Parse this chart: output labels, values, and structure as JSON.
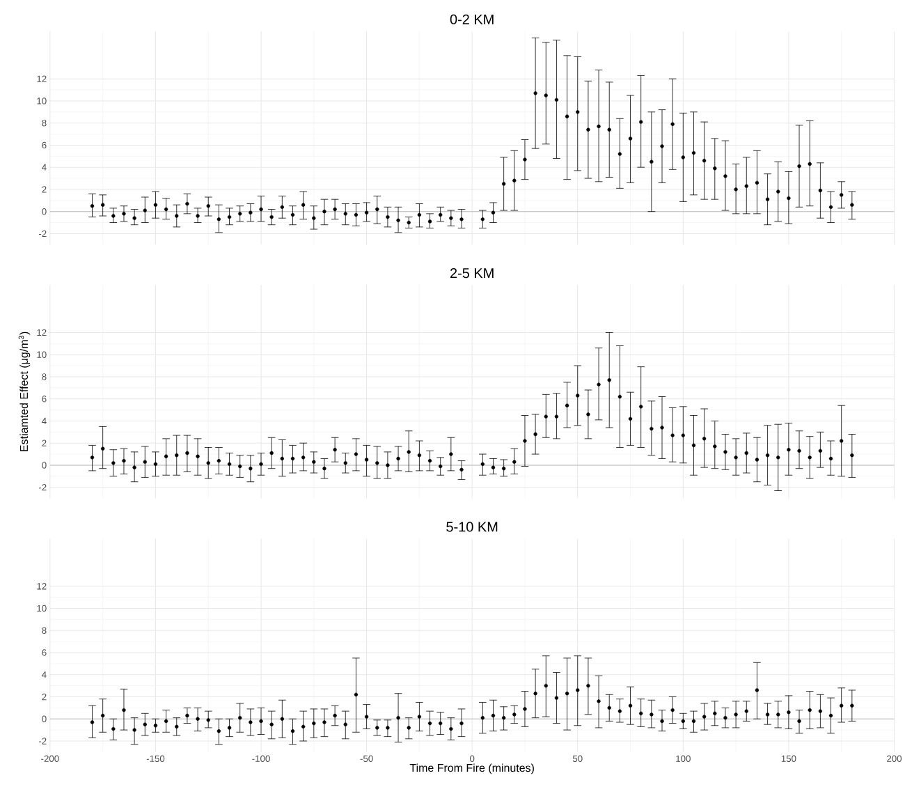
{
  "chart_data": [
    {
      "type": "scatter",
      "title": "0-2 KM",
      "color": "#000000",
      "grid": true,
      "tick_labels": "y",
      "xlim": [
        -200,
        200
      ],
      "xticks": [
        -200,
        -150,
        -100,
        -50,
        0,
        50,
        100,
        150,
        200
      ],
      "ylim": [
        -3,
        16.3
      ],
      "yticks": [
        -2,
        0,
        2,
        4,
        6,
        8,
        10,
        12
      ],
      "ref_lines": [
        {
          "axis": "y",
          "value": 0,
          "color": "#bdbdbd"
        }
      ],
      "x": [
        -180,
        -175,
        -170,
        -165,
        -160,
        -155,
        -150,
        -145,
        -140,
        -135,
        -130,
        -125,
        -120,
        -115,
        -110,
        -105,
        -100,
        -95,
        -90,
        -85,
        -80,
        -75,
        -70,
        -65,
        -60,
        -55,
        -50,
        -45,
        -40,
        -35,
        -30,
        -25,
        -20,
        -15,
        -10,
        -5,
        5,
        10,
        15,
        20,
        25,
        30,
        35,
        40,
        45,
        50,
        55,
        60,
        65,
        70,
        75,
        80,
        85,
        90,
        95,
        100,
        105,
        110,
        115,
        120,
        125,
        130,
        135,
        140,
        145,
        150,
        155,
        160,
        165,
        170,
        175,
        180
      ],
      "values": [
        0.5,
        0.6,
        -0.4,
        -0.2,
        -0.6,
        0.1,
        0.6,
        0.2,
        -0.4,
        0.7,
        -0.4,
        0.5,
        -0.7,
        -0.5,
        -0.2,
        -0.1,
        0.2,
        -0.5,
        0.4,
        -0.3,
        0.6,
        -0.6,
        0.0,
        0.2,
        -0.2,
        -0.3,
        -0.1,
        0.2,
        -0.5,
        -0.8,
        -1.0,
        -0.3,
        -0.9,
        -0.3,
        -0.6,
        -0.7,
        -0.7,
        -0.1,
        2.5,
        2.8,
        4.7,
        10.7,
        10.5,
        10.1,
        8.6,
        9.0,
        7.4,
        7.7,
        7.4,
        5.2,
        6.6,
        8.1,
        4.5,
        5.9,
        7.9,
        4.9,
        5.3,
        4.6,
        3.9,
        3.2,
        2.0,
        2.3,
        2.6,
        1.1,
        1.8,
        1.2,
        4.1,
        4.3,
        1.9,
        0.4,
        1.5,
        0.6
      ],
      "errors": [
        [
          -0.5,
          1.6
        ],
        [
          -0.4,
          1.5
        ],
        [
          -1.0,
          0.3
        ],
        [
          -0.9,
          0.5
        ],
        [
          -1.2,
          0.2
        ],
        [
          -1.0,
          1.3
        ],
        [
          -0.6,
          1.8
        ],
        [
          -0.7,
          1.2
        ],
        [
          -1.4,
          0.6
        ],
        [
          -0.2,
          1.6
        ],
        [
          -1.0,
          0.3
        ],
        [
          -0.4,
          1.3
        ],
        [
          -1.9,
          0.6
        ],
        [
          -1.2,
          0.3
        ],
        [
          -0.9,
          0.5
        ],
        [
          -0.9,
          0.7
        ],
        [
          -0.9,
          1.4
        ],
        [
          -1.2,
          0.2
        ],
        [
          -0.6,
          1.4
        ],
        [
          -1.2,
          0.5
        ],
        [
          -0.7,
          1.8
        ],
        [
          -1.6,
          0.5
        ],
        [
          -1.2,
          1.1
        ],
        [
          -0.7,
          1.1
        ],
        [
          -1.2,
          0.7
        ],
        [
          -1.3,
          0.7
        ],
        [
          -0.9,
          0.8
        ],
        [
          -1.1,
          1.4
        ],
        [
          -1.4,
          0.4
        ],
        [
          -1.9,
          0.4
        ],
        [
          -1.5,
          -0.5
        ],
        [
          -1.4,
          0.7
        ],
        [
          -1.5,
          -0.2
        ],
        [
          -0.9,
          0.4
        ],
        [
          -1.3,
          0.1
        ],
        [
          -1.5,
          0.2
        ],
        [
          -1.5,
          0.1
        ],
        [
          -1.0,
          0.8
        ],
        [
          0.1,
          4.9
        ],
        [
          0.1,
          5.5
        ],
        [
          2.9,
          6.5
        ],
        [
          5.7,
          15.7
        ],
        [
          6.1,
          15.3
        ],
        [
          4.8,
          15.5
        ],
        [
          2.9,
          14.1
        ],
        [
          3.7,
          14.0
        ],
        [
          3.0,
          11.8
        ],
        [
          2.7,
          12.8
        ],
        [
          3.1,
          11.7
        ],
        [
          2.1,
          8.4
        ],
        [
          2.6,
          10.5
        ],
        [
          4.0,
          12.3
        ],
        [
          0.0,
          9.0
        ],
        [
          2.6,
          9.2
        ],
        [
          3.8,
          12.0
        ],
        [
          0.9,
          8.9
        ],
        [
          1.5,
          9.0
        ],
        [
          1.1,
          8.1
        ],
        [
          1.1,
          6.6
        ],
        [
          0.1,
          6.4
        ],
        [
          -0.2,
          4.3
        ],
        [
          -0.2,
          4.9
        ],
        [
          -0.2,
          5.5
        ],
        [
          -1.2,
          3.4
        ],
        [
          -0.9,
          4.5
        ],
        [
          -1.1,
          3.6
        ],
        [
          0.4,
          7.8
        ],
        [
          0.5,
          8.2
        ],
        [
          -0.6,
          4.4
        ],
        [
          -1.0,
          1.8
        ],
        [
          0.3,
          2.7
        ],
        [
          -0.7,
          1.8
        ]
      ]
    },
    {
      "type": "scatter",
      "title": "2-5 KM",
      "ylabel": "Estiamted Effect (μg/m$^{3}$)",
      "color": "#000000",
      "grid": true,
      "tick_labels": "y",
      "xlim": [
        -200,
        200
      ],
      "xticks": [
        -200,
        -150,
        -100,
        -50,
        0,
        50,
        100,
        150,
        200
      ],
      "ylim": [
        -3,
        16.3
      ],
      "yticks": [
        -2,
        0,
        2,
        4,
        6,
        8,
        10,
        12
      ],
      "ref_lines": [
        {
          "axis": "y",
          "value": 0,
          "color": "#bdbdbd"
        }
      ],
      "x": [
        -180,
        -175,
        -170,
        -165,
        -160,
        -155,
        -150,
        -145,
        -140,
        -135,
        -130,
        -125,
        -120,
        -115,
        -110,
        -105,
        -100,
        -95,
        -90,
        -85,
        -80,
        -75,
        -70,
        -65,
        -60,
        -55,
        -50,
        -45,
        -40,
        -35,
        -30,
        -25,
        -20,
        -15,
        -10,
        -5,
        5,
        10,
        15,
        20,
        25,
        30,
        35,
        40,
        45,
        50,
        55,
        60,
        65,
        70,
        75,
        80,
        85,
        90,
        95,
        100,
        105,
        110,
        115,
        120,
        125,
        130,
        135,
        140,
        145,
        150,
        155,
        160,
        165,
        170,
        175,
        180
      ],
      "values": [
        0.7,
        1.5,
        0.2,
        0.4,
        -0.2,
        0.3,
        0.1,
        0.8,
        0.9,
        1.1,
        0.8,
        0.2,
        0.4,
        0.1,
        -0.1,
        -0.3,
        0.1,
        1.1,
        0.6,
        0.6,
        0.7,
        0.3,
        -0.3,
        1.4,
        0.2,
        1.0,
        0.5,
        0.2,
        0.0,
        0.6,
        1.2,
        0.9,
        0.4,
        -0.1,
        1.0,
        -0.4,
        0.1,
        -0.2,
        -0.3,
        0.3,
        2.2,
        2.8,
        4.4,
        4.4,
        5.4,
        6.3,
        4.6,
        7.3,
        7.7,
        6.2,
        4.2,
        5.3,
        3.3,
        3.4,
        2.7,
        2.7,
        1.8,
        2.4,
        1.7,
        1.2,
        0.7,
        1.1,
        0.5,
        0.9,
        0.7,
        1.4,
        1.3,
        0.7,
        1.3,
        0.6,
        2.2,
        0.9
      ],
      "errors": [
        [
          -0.5,
          1.8
        ],
        [
          -0.3,
          3.5
        ],
        [
          -1.0,
          1.4
        ],
        [
          -0.8,
          1.5
        ],
        [
          -1.5,
          1.2
        ],
        [
          -1.1,
          1.7
        ],
        [
          -1.0,
          1.2
        ],
        [
          -0.9,
          2.4
        ],
        [
          -0.9,
          2.7
        ],
        [
          -0.6,
          2.7
        ],
        [
          -0.9,
          2.4
        ],
        [
          -1.2,
          1.6
        ],
        [
          -0.8,
          1.6
        ],
        [
          -0.9,
          1.1
        ],
        [
          -1.1,
          0.9
        ],
        [
          -1.5,
          0.9
        ],
        [
          -0.9,
          1.1
        ],
        [
          -0.3,
          2.5
        ],
        [
          -1.0,
          2.3
        ],
        [
          -0.7,
          1.8
        ],
        [
          -0.5,
          2.0
        ],
        [
          -0.7,
          1.2
        ],
        [
          -1.2,
          0.6
        ],
        [
          0.3,
          2.5
        ],
        [
          -0.7,
          1.1
        ],
        [
          -0.5,
          2.4
        ],
        [
          -1.0,
          1.8
        ],
        [
          -1.2,
          1.7
        ],
        [
          -1.2,
          1.2
        ],
        [
          -0.5,
          1.7
        ],
        [
          -0.6,
          3.1
        ],
        [
          -0.5,
          2.2
        ],
        [
          -0.5,
          1.3
        ],
        [
          -0.9,
          0.7
        ],
        [
          -0.5,
          2.5
        ],
        [
          -1.3,
          0.4
        ],
        [
          -0.9,
          1.0
        ],
        [
          -0.8,
          0.6
        ],
        [
          -1.0,
          0.5
        ],
        [
          -0.8,
          1.5
        ],
        [
          -0.1,
          4.5
        ],
        [
          1.0,
          4.6
        ],
        [
          2.5,
          6.4
        ],
        [
          2.4,
          6.5
        ],
        [
          3.4,
          7.5
        ],
        [
          3.6,
          9.0
        ],
        [
          2.4,
          6.8
        ],
        [
          4.1,
          10.6
        ],
        [
          3.4,
          12.0
        ],
        [
          1.6,
          10.8
        ],
        [
          1.8,
          6.6
        ],
        [
          1.6,
          8.9
        ],
        [
          0.9,
          5.8
        ],
        [
          0.6,
          6.2
        ],
        [
          0.3,
          5.2
        ],
        [
          0.2,
          5.3
        ],
        [
          -0.9,
          4.5
        ],
        [
          -0.2,
          5.1
        ],
        [
          -0.3,
          4.0
        ],
        [
          -0.4,
          2.8
        ],
        [
          -0.9,
          2.4
        ],
        [
          -0.7,
          2.9
        ],
        [
          -1.5,
          2.5
        ],
        [
          -1.8,
          3.6
        ],
        [
          -2.3,
          3.7
        ],
        [
          -0.9,
          3.8
        ],
        [
          -0.3,
          3.1
        ],
        [
          -1.2,
          2.6
        ],
        [
          -0.2,
          3.0
        ],
        [
          -0.9,
          2.2
        ],
        [
          -1.0,
          5.4
        ],
        [
          -1.1,
          2.8
        ]
      ]
    },
    {
      "type": "scatter",
      "title": "5-10 KM",
      "xlabel": "Time From Fire (minutes)",
      "color": "#000000",
      "grid": true,
      "xlim": [
        -200,
        200
      ],
      "xticks": [
        -200,
        -150,
        -100,
        -50,
        0,
        50,
        100,
        150,
        200
      ],
      "ylim": [
        -3,
        16.3
      ],
      "yticks": [
        -2,
        0,
        2,
        4,
        6,
        8,
        10,
        12
      ],
      "ref_lines": [
        {
          "axis": "y",
          "value": 0,
          "color": "#bdbdbd"
        }
      ],
      "x": [
        -180,
        -175,
        -170,
        -165,
        -160,
        -155,
        -150,
        -145,
        -140,
        -135,
        -130,
        -125,
        -120,
        -115,
        -110,
        -105,
        -100,
        -95,
        -90,
        -85,
        -80,
        -75,
        -70,
        -65,
        -60,
        -55,
        -50,
        -45,
        -40,
        -35,
        -30,
        -25,
        -20,
        -15,
        -10,
        -5,
        5,
        10,
        15,
        20,
        25,
        30,
        35,
        40,
        45,
        50,
        55,
        60,
        65,
        70,
        75,
        80,
        85,
        90,
        95,
        100,
        105,
        110,
        115,
        120,
        125,
        130,
        135,
        140,
        145,
        150,
        155,
        160,
        165,
        170,
        175,
        180
      ],
      "values": [
        -0.3,
        0.3,
        -0.9,
        0.8,
        -1.0,
        -0.5,
        -0.6,
        -0.2,
        -0.7,
        0.3,
        0.0,
        -0.1,
        -1.1,
        -0.8,
        0.1,
        -0.3,
        -0.2,
        -0.5,
        0.0,
        -1.1,
        -0.7,
        -0.4,
        -0.3,
        0.3,
        -0.5,
        2.2,
        0.2,
        -0.8,
        -0.8,
        0.1,
        -0.8,
        0.2,
        -0.4,
        -0.4,
        -0.9,
        -0.4,
        0.1,
        0.3,
        0.1,
        0.4,
        0.9,
        2.3,
        3.0,
        1.9,
        2.3,
        2.6,
        3.0,
        1.6,
        1.0,
        0.7,
        1.2,
        0.5,
        0.4,
        -0.2,
        0.8,
        -0.2,
        -0.2,
        0.2,
        0.5,
        0.1,
        0.4,
        0.7,
        2.6,
        0.4,
        0.4,
        0.6,
        -0.2,
        0.8,
        0.7,
        0.3,
        1.2,
        1.2
      ],
      "errors": [
        [
          -1.7,
          1.2
        ],
        [
          -1.2,
          1.8
        ],
        [
          -1.9,
          0.0
        ],
        [
          -1.0,
          2.7
        ],
        [
          -2.3,
          0.1
        ],
        [
          -1.5,
          0.5
        ],
        [
          -1.2,
          0.0
        ],
        [
          -1.2,
          0.8
        ],
        [
          -1.5,
          0.1
        ],
        [
          -0.4,
          1.0
        ],
        [
          -1.1,
          1.0
        ],
        [
          -0.8,
          0.7
        ],
        [
          -2.3,
          0.0
        ],
        [
          -1.6,
          0.0
        ],
        [
          -1.2,
          1.4
        ],
        [
          -1.5,
          0.9
        ],
        [
          -1.4,
          1.0
        ],
        [
          -1.8,
          0.7
        ],
        [
          -1.7,
          1.7
        ],
        [
          -2.3,
          0.0
        ],
        [
          -2.0,
          0.7
        ],
        [
          -1.7,
          0.9
        ],
        [
          -1.6,
          0.9
        ],
        [
          -0.6,
          1.2
        ],
        [
          -1.8,
          0.7
        ],
        [
          -1.2,
          5.5
        ],
        [
          -0.9,
          1.3
        ],
        [
          -1.5,
          -0.1
        ],
        [
          -1.6,
          -0.1
        ],
        [
          -2.1,
          2.3
        ],
        [
          -1.8,
          0.1
        ],
        [
          -1.1,
          1.5
        ],
        [
          -1.5,
          0.7
        ],
        [
          -1.4,
          0.6
        ],
        [
          -1.9,
          0.1
        ],
        [
          -1.6,
          0.9
        ],
        [
          -1.3,
          1.5
        ],
        [
          -1.1,
          1.7
        ],
        [
          -1.0,
          1.1
        ],
        [
          -0.4,
          1.2
        ],
        [
          -0.7,
          2.5
        ],
        [
          0.1,
          4.5
        ],
        [
          0.2,
          5.7
        ],
        [
          -0.4,
          4.2
        ],
        [
          -1.0,
          5.5
        ],
        [
          -0.6,
          5.7
        ],
        [
          0.4,
          5.5
        ],
        [
          -0.8,
          3.9
        ],
        [
          -0.2,
          2.2
        ],
        [
          -0.3,
          1.8
        ],
        [
          -0.5,
          2.9
        ],
        [
          -0.7,
          1.8
        ],
        [
          -0.8,
          1.7
        ],
        [
          -1.1,
          0.8
        ],
        [
          -0.4,
          2.0
        ],
        [
          -0.9,
          0.5
        ],
        [
          -1.2,
          0.7
        ],
        [
          -1.0,
          1.4
        ],
        [
          -0.6,
          1.6
        ],
        [
          -0.8,
          1.0
        ],
        [
          -0.8,
          1.6
        ],
        [
          -0.2,
          1.6
        ],
        [
          0.0,
          5.1
        ],
        [
          -0.5,
          1.4
        ],
        [
          -0.8,
          1.6
        ],
        [
          -0.9,
          2.1
        ],
        [
          -1.3,
          0.8
        ],
        [
          -0.9,
          2.5
        ],
        [
          -0.8,
          2.2
        ],
        [
          -1.3,
          1.9
        ],
        [
          -0.3,
          2.8
        ],
        [
          -0.2,
          2.6
        ]
      ]
    }
  ]
}
